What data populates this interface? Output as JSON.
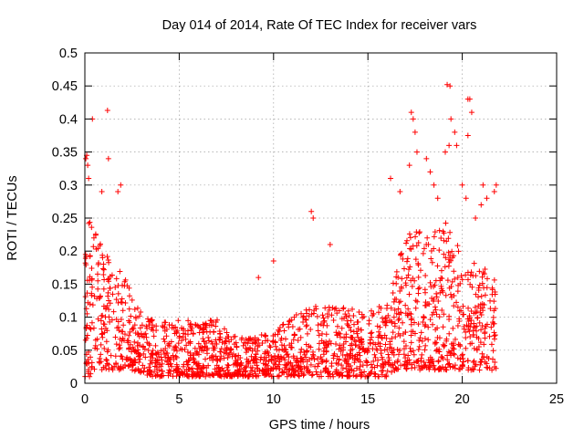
{
  "chart_data": {
    "type": "scatter",
    "title": "Day 014 of 2014, Rate Of TEC Index for receiver vars",
    "xlabel": "GPS time / hours",
    "ylabel": "ROTI / TECUs",
    "xlim": [
      0,
      25
    ],
    "ylim": [
      0,
      0.5
    ],
    "x_ticks": [
      0,
      5,
      10,
      15,
      20,
      25
    ],
    "y_ticks": [
      0,
      0.05,
      0.1,
      0.15,
      0.2,
      0.25,
      0.3,
      0.35,
      0.4,
      0.45,
      0.5
    ],
    "x_tick_labels": [
      "0",
      "5",
      "10",
      "15",
      "20",
      "25"
    ],
    "y_tick_labels": [
      "0",
      "0.05",
      "0.1",
      "0.15",
      "0.2",
      "0.25",
      "0.3",
      "0.35",
      "0.4",
      "0.45",
      "0.5"
    ],
    "grid": true,
    "marker": "+",
    "series_color": "#ff0000",
    "envelope": {
      "hour": [
        0.0,
        0.25,
        0.5,
        1.0,
        1.5,
        2.0,
        2.5,
        3.0,
        3.5,
        4.0,
        5.0,
        6.0,
        7.0,
        8.0,
        9.0,
        10.0,
        11.0,
        12.0,
        13.0,
        14.0,
        15.0,
        16.0,
        16.5,
        17.0,
        17.5,
        18.0,
        18.5,
        19.0,
        19.5,
        20.0,
        20.5,
        21.0,
        21.5,
        21.8
      ],
      "typical_max": [
        0.2,
        0.26,
        0.24,
        0.2,
        0.18,
        0.17,
        0.14,
        0.11,
        0.1,
        0.09,
        0.1,
        0.09,
        0.1,
        0.07,
        0.07,
        0.08,
        0.1,
        0.12,
        0.12,
        0.12,
        0.11,
        0.12,
        0.18,
        0.22,
        0.24,
        0.22,
        0.23,
        0.25,
        0.22,
        0.2,
        0.19,
        0.18,
        0.17,
        0.16
      ],
      "typical_min": [
        0.01,
        0.01,
        0.02,
        0.02,
        0.02,
        0.02,
        0.02,
        0.015,
        0.01,
        0.01,
        0.01,
        0.01,
        0.01,
        0.01,
        0.01,
        0.01,
        0.01,
        0.01,
        0.01,
        0.01,
        0.01,
        0.01,
        0.02,
        0.02,
        0.02,
        0.02,
        0.02,
        0.02,
        0.02,
        0.02,
        0.02,
        0.02,
        0.02,
        0.02
      ]
    },
    "outliers": [
      [
        0.05,
        0.34
      ],
      [
        0.1,
        0.345
      ],
      [
        0.15,
        0.33
      ],
      [
        0.2,
        0.31
      ],
      [
        0.4,
        0.4
      ],
      [
        1.2,
        0.413
      ],
      [
        1.25,
        0.34
      ],
      [
        1.9,
        0.3
      ],
      [
        1.75,
        0.29
      ],
      [
        0.9,
        0.29
      ],
      [
        10.0,
        0.185
      ],
      [
        12.0,
        0.26
      ],
      [
        12.1,
        0.25
      ],
      [
        13.0,
        0.21
      ],
      [
        9.2,
        0.16
      ],
      [
        16.2,
        0.31
      ],
      [
        17.3,
        0.41
      ],
      [
        17.4,
        0.4
      ],
      [
        17.5,
        0.38
      ],
      [
        17.6,
        0.35
      ],
      [
        18.3,
        0.32
      ],
      [
        18.5,
        0.3
      ],
      [
        18.7,
        0.28
      ],
      [
        19.1,
        0.35
      ],
      [
        19.2,
        0.452
      ],
      [
        19.35,
        0.45
      ],
      [
        19.4,
        0.4
      ],
      [
        19.6,
        0.38
      ],
      [
        19.7,
        0.36
      ],
      [
        20.0,
        0.3
      ],
      [
        20.2,
        0.28
      ],
      [
        20.3,
        0.43
      ],
      [
        20.4,
        0.43
      ],
      [
        20.5,
        0.41
      ],
      [
        20.3,
        0.375
      ],
      [
        19.3,
        0.36
      ],
      [
        21.1,
        0.3
      ],
      [
        21.7,
        0.29
      ],
      [
        21.8,
        0.3
      ],
      [
        21.0,
        0.27
      ],
      [
        20.7,
        0.25
      ],
      [
        21.3,
        0.28
      ],
      [
        17.2,
        0.33
      ],
      [
        18.1,
        0.34
      ],
      [
        16.7,
        0.29
      ]
    ],
    "time_range_hours": [
      0,
      21.8
    ]
  }
}
